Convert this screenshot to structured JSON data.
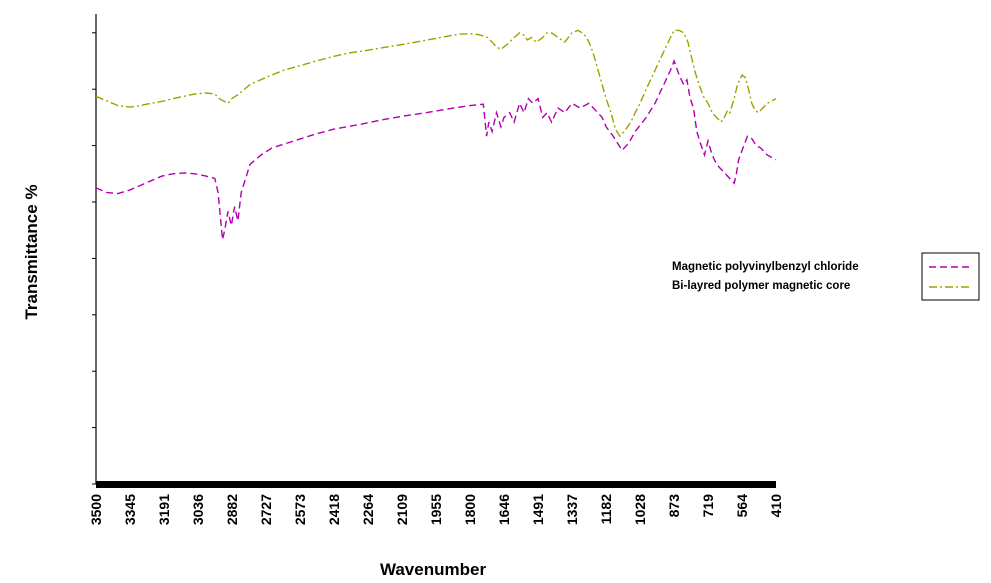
{
  "chart_data": {
    "type": "line",
    "title": "",
    "xlabel": "Wavenumber",
    "ylabel": "Transmittance %",
    "xlim": [
      3500,
      410
    ],
    "x_reversed": true,
    "x_ticks": [
      "3500",
      "3345",
      "3191",
      "3036",
      "2882",
      "2727",
      "2573",
      "2418",
      "2264",
      "2109",
      "1955",
      "1800",
      "1646",
      "1491",
      "1337",
      "1182",
      "1028",
      "873",
      "719",
      "564",
      "410"
    ],
    "ylim": [
      0,
      100
    ],
    "y_ticks_labeled": false,
    "y_tick_values": [
      0,
      12,
      24,
      36,
      48,
      60,
      72,
      84,
      96
    ],
    "grid": false,
    "legend_position": "right",
    "series": [
      {
        "name": "Magnetic polyvinylbenzyl chloride",
        "color": "#b000b0",
        "dash": "dashed",
        "points": [
          [
            3500,
            63
          ],
          [
            3450,
            62
          ],
          [
            3400,
            61.8
          ],
          [
            3350,
            62.5
          ],
          [
            3300,
            63.5
          ],
          [
            3250,
            64.5
          ],
          [
            3200,
            65.5
          ],
          [
            3150,
            66
          ],
          [
            3100,
            66.2
          ],
          [
            3050,
            66
          ],
          [
            3000,
            65.5
          ],
          [
            2960,
            65
          ],
          [
            2945,
            62
          ],
          [
            2935,
            57
          ],
          [
            2925,
            52
          ],
          [
            2915,
            54
          ],
          [
            2900,
            58
          ],
          [
            2885,
            55
          ],
          [
            2870,
            59
          ],
          [
            2855,
            56
          ],
          [
            2840,
            62
          ],
          [
            2800,
            68
          ],
          [
            2750,
            70
          ],
          [
            2700,
            71.5
          ],
          [
            2600,
            73
          ],
          [
            2500,
            74.5
          ],
          [
            2418,
            75.5
          ],
          [
            2300,
            76.5
          ],
          [
            2200,
            77.5
          ],
          [
            2100,
            78.3
          ],
          [
            2000,
            79
          ],
          [
            1900,
            79.8
          ],
          [
            1800,
            80.5
          ],
          [
            1740,
            80.8
          ],
          [
            1725,
            74
          ],
          [
            1715,
            77
          ],
          [
            1700,
            75
          ],
          [
            1680,
            79
          ],
          [
            1660,
            76
          ],
          [
            1646,
            78
          ],
          [
            1620,
            79
          ],
          [
            1600,
            77
          ],
          [
            1575,
            81
          ],
          [
            1555,
            79
          ],
          [
            1535,
            82
          ],
          [
            1515,
            81
          ],
          [
            1491,
            82
          ],
          [
            1470,
            78
          ],
          [
            1450,
            79
          ],
          [
            1430,
            77
          ],
          [
            1400,
            80
          ],
          [
            1370,
            79
          ],
          [
            1337,
            81
          ],
          [
            1300,
            80
          ],
          [
            1260,
            81
          ],
          [
            1230,
            79.5
          ],
          [
            1200,
            78
          ],
          [
            1182,
            76
          ],
          [
            1150,
            74
          ],
          [
            1110,
            71
          ],
          [
            1080,
            72.5
          ],
          [
            1050,
            75
          ],
          [
            1000,
            78
          ],
          [
            960,
            81
          ],
          [
            920,
            85
          ],
          [
            890,
            88
          ],
          [
            873,
            90
          ],
          [
            850,
            87
          ],
          [
            830,
            85
          ],
          [
            815,
            86
          ],
          [
            800,
            82
          ],
          [
            785,
            80
          ],
          [
            770,
            75
          ],
          [
            750,
            72
          ],
          [
            735,
            70
          ],
          [
            719,
            73
          ],
          [
            700,
            70
          ],
          [
            680,
            68
          ],
          [
            660,
            67
          ],
          [
            640,
            66
          ],
          [
            620,
            65
          ],
          [
            600,
            64
          ],
          [
            590,
            66
          ],
          [
            580,
            69
          ],
          [
            564,
            71
          ],
          [
            540,
            74
          ],
          [
            520,
            73.5
          ],
          [
            500,
            72
          ],
          [
            480,
            71.5
          ],
          [
            450,
            70
          ],
          [
            430,
            69.5
          ],
          [
            410,
            69
          ]
        ]
      },
      {
        "name": "Bi-layred polymer magnetic core",
        "color": "#a0a000",
        "dash": "dashdot",
        "points": [
          [
            3500,
            82.5
          ],
          [
            3450,
            81.5
          ],
          [
            3400,
            80.5
          ],
          [
            3345,
            80.2
          ],
          [
            3300,
            80.5
          ],
          [
            3250,
            81
          ],
          [
            3191,
            81.5
          ],
          [
            3150,
            82
          ],
          [
            3100,
            82.5
          ],
          [
            3050,
            83
          ],
          [
            3000,
            83.2
          ],
          [
            2960,
            83
          ],
          [
            2940,
            82
          ],
          [
            2920,
            81.5
          ],
          [
            2900,
            81
          ],
          [
            2882,
            82
          ],
          [
            2850,
            83
          ],
          [
            2800,
            85
          ],
          [
            2727,
            86.5
          ],
          [
            2650,
            88
          ],
          [
            2573,
            89
          ],
          [
            2500,
            90
          ],
          [
            2418,
            91
          ],
          [
            2350,
            91.7
          ],
          [
            2264,
            92.3
          ],
          [
            2200,
            92.8
          ],
          [
            2109,
            93.5
          ],
          [
            2050,
            94
          ],
          [
            1955,
            94.8
          ],
          [
            1900,
            95.3
          ],
          [
            1850,
            95.7
          ],
          [
            1800,
            95.8
          ],
          [
            1760,
            95.6
          ],
          [
            1720,
            95
          ],
          [
            1700,
            94
          ],
          [
            1680,
            93
          ],
          [
            1660,
            92.5
          ],
          [
            1646,
            93
          ],
          [
            1620,
            94
          ],
          [
            1600,
            95
          ],
          [
            1575,
            96
          ],
          [
            1555,
            95.5
          ],
          [
            1540,
            94.5
          ],
          [
            1520,
            95
          ],
          [
            1500,
            94
          ],
          [
            1491,
            94.3
          ],
          [
            1470,
            95
          ],
          [
            1450,
            96
          ],
          [
            1430,
            96
          ],
          [
            1400,
            95
          ],
          [
            1370,
            94
          ],
          [
            1337,
            96
          ],
          [
            1310,
            96.5
          ],
          [
            1290,
            96
          ],
          [
            1270,
            95
          ],
          [
            1250,
            93
          ],
          [
            1230,
            90
          ],
          [
            1200,
            85
          ],
          [
            1182,
            82
          ],
          [
            1160,
            79
          ],
          [
            1140,
            75.5
          ],
          [
            1120,
            74
          ],
          [
            1100,
            75
          ],
          [
            1070,
            77
          ],
          [
            1050,
            79
          ],
          [
            1028,
            81
          ],
          [
            1000,
            84
          ],
          [
            970,
            87
          ],
          [
            940,
            90
          ],
          [
            910,
            93
          ],
          [
            890,
            95
          ],
          [
            873,
            96.5
          ],
          [
            850,
            96.5
          ],
          [
            830,
            96
          ],
          [
            810,
            94
          ],
          [
            795,
            91
          ],
          [
            780,
            88
          ],
          [
            760,
            85
          ],
          [
            740,
            82.5
          ],
          [
            719,
            81
          ],
          [
            700,
            79
          ],
          [
            680,
            78
          ],
          [
            660,
            77
          ],
          [
            645,
            78
          ],
          [
            630,
            79.5
          ],
          [
            620,
            79
          ],
          [
            600,
            82
          ],
          [
            585,
            85
          ],
          [
            564,
            87
          ],
          [
            550,
            86.5
          ],
          [
            535,
            84
          ],
          [
            520,
            81
          ],
          [
            505,
            79.5
          ],
          [
            490,
            79
          ],
          [
            470,
            80
          ],
          [
            450,
            81
          ],
          [
            430,
            81.5
          ],
          [
            410,
            82
          ]
        ]
      }
    ]
  }
}
